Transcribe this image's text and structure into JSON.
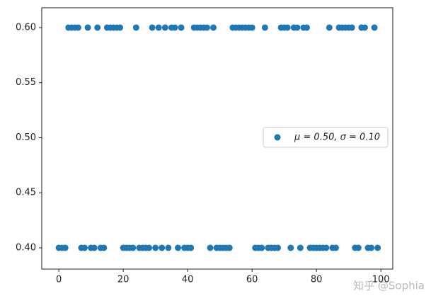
{
  "chart_data": {
    "type": "scatter",
    "x": [
      0,
      1,
      2,
      3,
      4,
      5,
      6,
      7,
      8,
      9,
      10,
      11,
      12,
      13,
      14,
      15,
      16,
      17,
      18,
      19,
      20,
      21,
      22,
      23,
      24,
      25,
      26,
      27,
      28,
      29,
      30,
      31,
      32,
      33,
      34,
      35,
      36,
      37,
      38,
      39,
      40,
      41,
      42,
      43,
      44,
      45,
      46,
      47,
      48,
      49,
      50,
      51,
      52,
      53,
      54,
      55,
      56,
      57,
      58,
      59,
      60,
      61,
      62,
      63,
      64,
      65,
      66,
      67,
      68,
      69,
      70,
      71,
      72,
      73,
      74,
      75,
      76,
      77,
      78,
      79,
      80,
      81,
      82,
      83,
      84,
      85,
      86,
      87,
      88,
      89,
      90,
      91,
      92,
      93,
      94,
      95,
      96,
      97,
      98,
      99
    ],
    "series": [
      {
        "name": "μ = 0.50,  σ = 0.10",
        "color": "#1f77b4",
        "values": [
          0.4,
          0.4,
          0.4,
          0.6,
          0.6,
          0.6,
          0.6,
          0.4,
          0.4,
          0.6,
          0.4,
          0.4,
          0.6,
          0.4,
          0.4,
          0.6,
          0.6,
          0.6,
          0.6,
          0.6,
          0.4,
          0.4,
          0.4,
          0.4,
          0.6,
          0.4,
          0.4,
          0.4,
          0.4,
          0.6,
          0.4,
          0.6,
          0.4,
          0.6,
          0.4,
          0.6,
          0.6,
          0.4,
          0.6,
          0.4,
          0.4,
          0.4,
          0.6,
          0.6,
          0.6,
          0.6,
          0.6,
          0.4,
          0.6,
          0.4,
          0.4,
          0.4,
          0.4,
          0.4,
          0.6,
          0.6,
          0.6,
          0.6,
          0.6,
          0.6,
          0.6,
          0.4,
          0.4,
          0.4,
          0.6,
          0.4,
          0.4,
          0.4,
          0.4,
          0.6,
          0.6,
          0.6,
          0.4,
          0.6,
          0.6,
          0.4,
          0.6,
          0.6,
          0.4,
          0.4,
          0.4,
          0.4,
          0.4,
          0.4,
          0.6,
          0.4,
          0.4,
          0.6,
          0.6,
          0.6,
          0.6,
          0.6,
          0.4,
          0.4,
          0.6,
          0.6,
          0.4,
          0.4,
          0.6,
          0.4
        ]
      }
    ],
    "xlim": [
      -5.3,
      103.7
    ],
    "xticks": [
      0,
      20,
      40,
      60,
      80,
      100
    ],
    "ylim": [
      0.3807,
      0.618
    ],
    "yticks": [
      {
        "value": 0.4,
        "label": "0.40"
      },
      {
        "value": 0.45,
        "label": "0.45"
      },
      {
        "value": 0.5,
        "label": "0.50"
      },
      {
        "value": 0.55,
        "label": "0.55"
      },
      {
        "value": 0.6,
        "label": "0.60"
      }
    ],
    "legend": "right",
    "watermark": "知乎 @Sophia"
  }
}
